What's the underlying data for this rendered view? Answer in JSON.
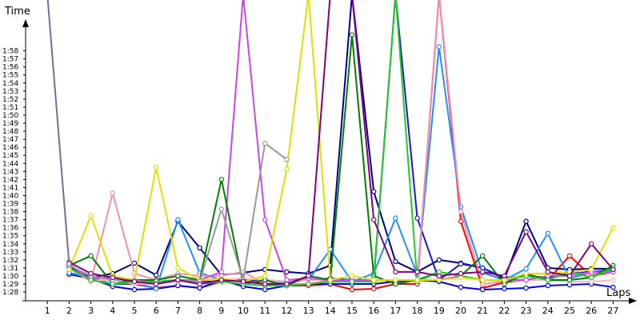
{
  "chart_data": {
    "type": "line",
    "ylabel": "Time",
    "xlabel": "Laps",
    "x": [
      1,
      2,
      3,
      4,
      5,
      6,
      7,
      8,
      9,
      10,
      11,
      12,
      13,
      14,
      15,
      16,
      17,
      18,
      19,
      20,
      21,
      22,
      23,
      24,
      25,
      26,
      27
    ],
    "y_ticks": [
      "1:28",
      "1:29",
      "1:30",
      "1:31",
      "1:32",
      "1:33",
      "1:34",
      "1:35",
      "1:36",
      "1:37",
      "1:38",
      "1:39",
      "1:40",
      "1:41",
      "1:42",
      "1:43",
      "1:44",
      "1:45",
      "1:46",
      "1:47",
      "1:48",
      "1:49",
      "1:50",
      "1:51",
      "1:52",
      "1:53",
      "1:54",
      "1:55",
      "1:56",
      "1:57",
      "1:58"
    ],
    "ylim_seconds": [
      87,
      119.5
    ],
    "grid": false,
    "series": [
      {
        "color": "#ff0000",
        "values": [
          null,
          91.0,
          89.5,
          89.0,
          89.0,
          88.5,
          88.8,
          88.5,
          89.3,
          89.5,
          89.0,
          88.8,
          88.8,
          89.0,
          88.3,
          88.4,
          89.0,
          89.0,
          125.0,
          96.8,
          88.5,
          89.2,
          89.5,
          89.5,
          92.5,
          90.0,
          90.5
        ]
      },
      {
        "color": "#0000ff",
        "values": [
          null,
          90.2,
          89.7,
          88.7,
          88.3,
          88.4,
          88.8,
          88.5,
          89.5,
          88.7,
          88.3,
          88.8,
          89.0,
          89.0,
          89.0,
          89.0,
          89.3,
          89.5,
          89.3,
          88.6,
          88.3,
          88.4,
          88.5,
          88.8,
          88.9,
          89.0,
          88.6
        ]
      },
      {
        "color": "#00008b",
        "values": [
          null,
          91.2,
          89.8,
          90.3,
          91.6,
          90.1,
          96.8,
          93.5,
          90.1,
          90.4,
          90.8,
          90.5,
          90.3,
          91.3,
          125.0,
          100.5,
          91.8,
          90.5,
          92.0,
          91.6,
          91.0,
          89.6,
          96.8,
          91.0,
          90.8,
          90.9,
          90.9
        ]
      },
      {
        "color": "#1a1ad0",
        "values": [
          null,
          91.0,
          90.0,
          89.5,
          89.3,
          89.3,
          89.5,
          89.3,
          89.5,
          89.5,
          89.5,
          89.3,
          89.5,
          89.7,
          89.5,
          89.5,
          125.0,
          97.2,
          89.5,
          91.5,
          91.0,
          89.8,
          90.0,
          89.8,
          90.3,
          90.5,
          90.8
        ]
      },
      {
        "color": "#1e90ff",
        "values": [
          null,
          90.4,
          89.8,
          89.0,
          89.2,
          88.4,
          97.0,
          90.4,
          89.5,
          89.3,
          89.0,
          89.2,
          89.5,
          93.3,
          89.3,
          90.3,
          97.2,
          90.1,
          118.5,
          98.6,
          90.4,
          89.5,
          90.9,
          95.3,
          89.7,
          90.4,
          90.7
        ]
      },
      {
        "color": "#ffb6c1",
        "values": [
          null,
          91.5,
          89.5,
          89.5,
          89.0,
          89.0,
          89.3,
          89.5,
          89.5,
          89.7,
          89.5,
          89.3,
          89.5,
          89.5,
          89.3,
          89.3,
          89.5,
          89.5,
          89.5,
          90.0,
          89.5,
          89.3,
          89.5,
          89.5,
          89.3,
          89.3,
          89.5
        ]
      },
      {
        "color": "#f48fb1",
        "values": [
          null,
          91.0,
          89.3,
          100.3,
          90.3,
          89.5,
          90.3,
          90.0,
          90.0,
          90.5,
          89.0,
          89.0,
          89.0,
          89.5,
          89.5,
          89.5,
          89.5,
          89.5,
          125.0,
          98.0,
          89.0,
          89.3,
          89.5,
          90.0,
          90.3,
          90.3,
          90.5
        ]
      },
      {
        "color": "#cc44ee",
        "values": [
          null,
          91.5,
          89.5,
          90.0,
          89.5,
          89.0,
          89.5,
          89.5,
          90.5,
          125.0,
          97.0,
          89.5,
          89.7,
          89.5,
          89.5,
          89.5,
          89.5,
          89.5,
          89.5,
          90.0,
          89.5,
          89.5,
          89.5,
          90.0,
          90.0,
          90.5,
          90.5
        ]
      },
      {
        "color": "#008000",
        "values": [
          null,
          91.3,
          92.5,
          89.0,
          89.5,
          89.5,
          90.0,
          89.5,
          102.0,
          89.0,
          89.5,
          88.8,
          90.0,
          89.5,
          120.0,
          90.0,
          89.0,
          89.5,
          90.5,
          90.0,
          92.5,
          89.0,
          90.3,
          89.5,
          89.5,
          89.8,
          91.3
        ]
      },
      {
        "color": "#22cc22",
        "values": [
          null,
          91.0,
          89.5,
          89.0,
          89.3,
          89.3,
          89.5,
          89.0,
          89.3,
          89.0,
          88.8,
          88.8,
          89.0,
          89.3,
          89.3,
          89.3,
          125.0,
          89.3,
          90.5,
          90.0,
          89.5,
          89.5,
          90.0,
          89.5,
          90.5,
          89.8,
          91.0
        ]
      },
      {
        "color": "#e0e000",
        "values": [
          null,
          90.8,
          97.5,
          90.0,
          89.5,
          103.5,
          91.0,
          89.5,
          89.7,
          89.3,
          90.0,
          103.3,
          125.0,
          89.5,
          90.0,
          89.5,
          89.5,
          89.5,
          89.5,
          89.8,
          89.5,
          89.5,
          90.3,
          90.3,
          90.5,
          90.8,
          96.0
        ]
      },
      {
        "color": "#999999",
        "values": [
          null,
          91.3,
          90.0,
          89.5,
          89.5,
          89.0,
          89.5,
          89.3,
          98.3,
          89.5,
          106.5,
          104.5,
          null,
          null,
          null,
          null,
          null,
          null,
          null,
          null,
          null,
          null,
          null,
          null,
          null,
          null,
          null
        ]
      },
      {
        "color": "#800080",
        "values": [
          null,
          91.7,
          90.3,
          89.8,
          89.3,
          89.0,
          89.5,
          89.0,
          89.5,
          89.3,
          89.0,
          89.0,
          90.0,
          125.0,
          125.0,
          97.0,
          90.5,
          90.5,
          90.0,
          90.3,
          90.5,
          90.0,
          95.5,
          90.5,
          90.0,
          94.0,
          90.8
        ]
      },
      {
        "color": "#7a6a9a",
        "values": [
          125.0,
          91.5,
          null,
          null,
          null,
          null,
          null,
          null,
          null,
          null,
          null,
          null,
          null,
          null,
          null,
          null,
          null,
          null,
          null,
          null,
          null,
          null,
          null,
          null,
          null,
          null,
          null
        ]
      }
    ]
  }
}
